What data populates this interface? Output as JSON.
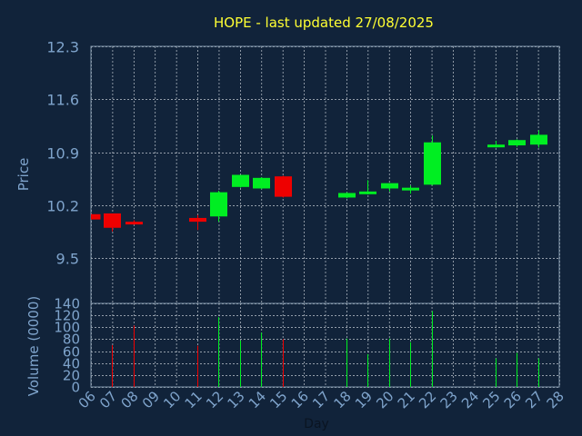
{
  "chart_data": {
    "type": "candlestick",
    "title": "HOPE - last updated 27/08/2025",
    "xlabel": "Day",
    "price_panel": {
      "ylabel": "Price",
      "ylim": [
        8.9,
        12.3
      ],
      "yticks": [
        "12.3",
        "11.6",
        "10.9",
        "10.2",
        "9.5"
      ],
      "ytick_values": [
        12.3,
        11.6,
        10.9,
        10.2,
        9.5
      ]
    },
    "volume_panel": {
      "ylabel": "Volume (0000)",
      "ylim": [
        0,
        140
      ],
      "yticks": [
        "140",
        "120",
        "100",
        "80",
        "60",
        "40",
        "20",
        "0"
      ],
      "ytick_values": [
        140,
        120,
        100,
        80,
        60,
        40,
        20,
        0
      ]
    },
    "x_ticks": [
      "06",
      "07",
      "08",
      "09",
      "10",
      "11",
      "12",
      "13",
      "14",
      "15",
      "16",
      "17",
      "18",
      "19",
      "20",
      "21",
      "22",
      "23",
      "24",
      "25",
      "26",
      "27",
      "28"
    ],
    "x_tick_days": [
      6,
      7,
      8,
      9,
      10,
      11,
      12,
      13,
      14,
      15,
      16,
      17,
      18,
      19,
      20,
      21,
      22,
      23,
      24,
      25,
      26,
      27,
      28
    ],
    "candles": [
      {
        "day": 6,
        "open": 10.08,
        "close": 10.01,
        "high": 10.08,
        "low": 10.01,
        "volume": 0
      },
      {
        "day": 7,
        "open": 10.09,
        "close": 9.9,
        "high": 10.09,
        "low": 9.85,
        "volume": 70
      },
      {
        "day": 8,
        "open": 9.98,
        "close": 9.96,
        "high": 10.0,
        "low": 9.94,
        "volume": 103
      },
      {
        "day": 11,
        "open": 10.03,
        "close": 9.98,
        "high": 10.07,
        "low": 9.87,
        "volume": 69
      },
      {
        "day": 12,
        "open": 10.05,
        "close": 10.37,
        "high": 10.39,
        "low": 9.98,
        "volume": 117
      },
      {
        "day": 13,
        "open": 10.44,
        "close": 10.6,
        "high": 10.6,
        "low": 10.43,
        "volume": 78
      },
      {
        "day": 14,
        "open": 10.42,
        "close": 10.56,
        "high": 10.57,
        "low": 10.41,
        "volume": 91
      },
      {
        "day": 15,
        "open": 10.58,
        "close": 10.31,
        "high": 10.59,
        "low": 10.3,
        "volume": 80
      },
      {
        "day": 18,
        "open": 10.3,
        "close": 10.36,
        "high": 10.37,
        "low": 10.29,
        "volume": 81
      },
      {
        "day": 19,
        "open": 10.35,
        "close": 10.38,
        "high": 10.53,
        "low": 10.34,
        "volume": 55
      },
      {
        "day": 20,
        "open": 10.42,
        "close": 10.49,
        "high": 10.49,
        "low": 10.38,
        "volume": 81
      },
      {
        "day": 21,
        "open": 10.41,
        "close": 10.43,
        "high": 10.46,
        "low": 10.35,
        "volume": 75
      },
      {
        "day": 22,
        "open": 10.47,
        "close": 11.03,
        "high": 11.12,
        "low": 10.46,
        "volume": 127
      },
      {
        "day": 25,
        "open": 10.97,
        "close": 11.0,
        "high": 11.05,
        "low": 10.96,
        "volume": 48
      },
      {
        "day": 26,
        "open": 10.99,
        "close": 11.06,
        "high": 11.07,
        "low": 10.97,
        "volume": 57
      },
      {
        "day": 27,
        "open": 11.0,
        "close": 11.13,
        "high": 11.19,
        "low": 10.96,
        "volume": 48
      }
    ],
    "colors": {
      "up": "#00ee22",
      "down": "#ee0000",
      "background": "#11233a",
      "title": "#ffff33",
      "axis_text": "#7fa4cc",
      "frame": "#8095aa",
      "grid": "#c0c8d0"
    }
  }
}
